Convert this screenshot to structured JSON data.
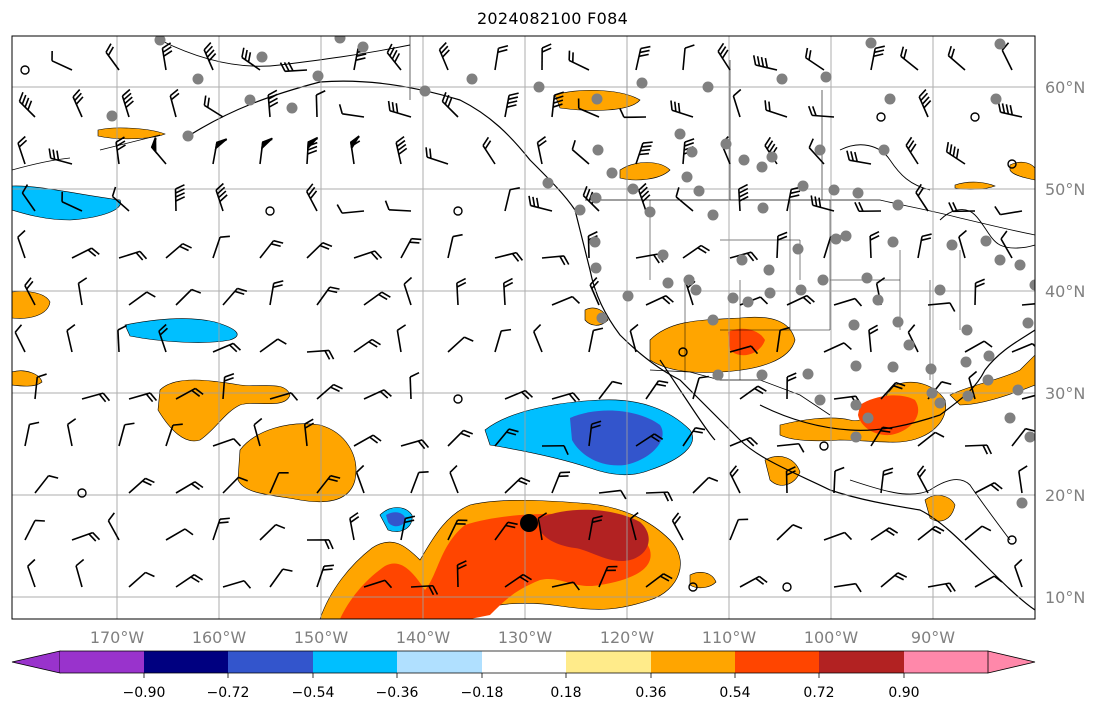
{
  "title": "2024082100 F084",
  "map": {
    "lon_labels": [
      "170°W",
      "160°W",
      "150°W",
      "140°W",
      "130°W",
      "120°W",
      "110°W",
      "100°W",
      "90°W"
    ],
    "lat_labels": [
      "60°N",
      "50°N",
      "40°N",
      "30°N",
      "20°N",
      "10°N"
    ],
    "gridline_color": "#a0a0a0",
    "coastline_color": "#000000",
    "wind_barb_color": "#000000",
    "station_marker_color": "#808080",
    "highlight_marker": "black-dot"
  },
  "colorbar": {
    "ticks": [
      "−0.90",
      "−0.72",
      "−0.54",
      "−0.36",
      "−0.18",
      "0.18",
      "0.36",
      "0.54",
      "0.72",
      "0.90"
    ],
    "colors": [
      "#9933cc",
      "#000080",
      "#3355cc",
      "#00bfff",
      "#b0e0ff",
      "#ffffff",
      "#ffeb8a",
      "#ffa500",
      "#ff4500",
      "#b22222",
      "#ff88aa"
    ],
    "extend": "both"
  }
}
